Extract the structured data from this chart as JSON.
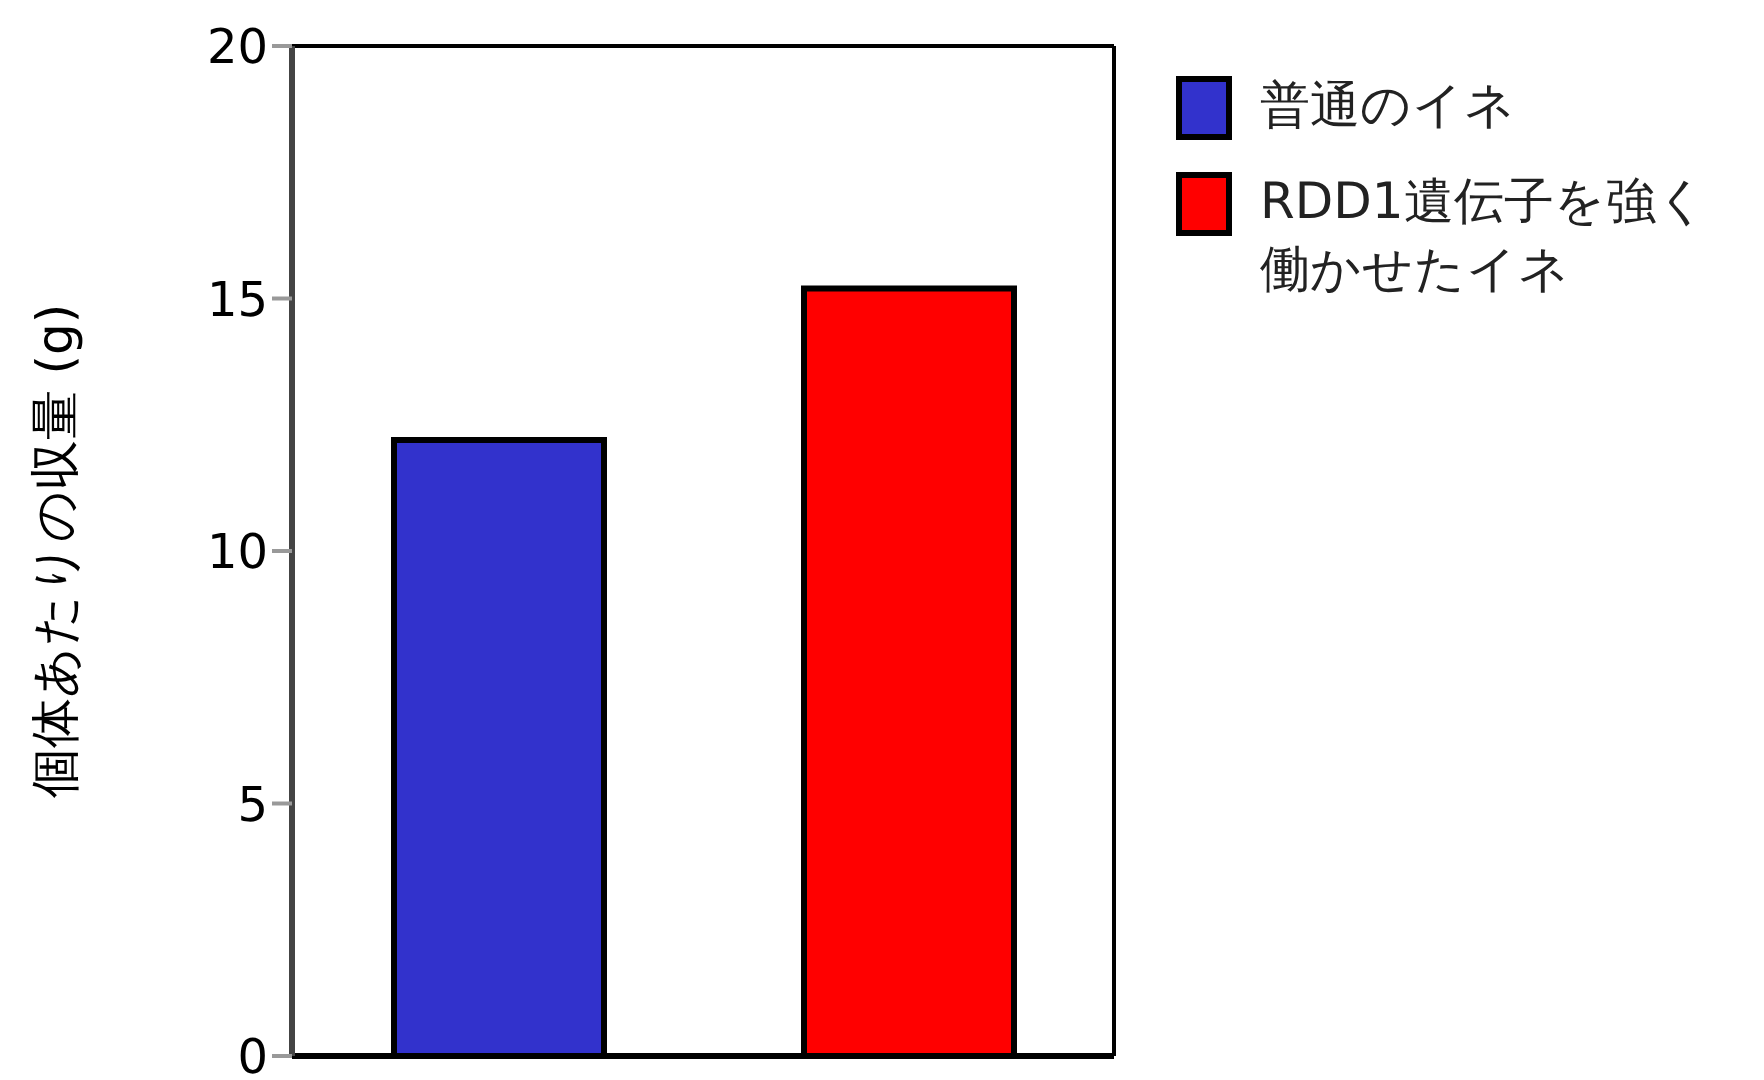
{
  "chart_data": {
    "type": "bar",
    "ylabel": "個体あたりの収量 (g)",
    "categories": [
      null
    ],
    "series": [
      {
        "name": "普通のイネ",
        "color": "#3232cc",
        "values": [
          12.2
        ]
      },
      {
        "name": "RDD1遺伝子を強く働かせたイネ",
        "color": "#ff0000",
        "values": [
          15.2
        ]
      }
    ],
    "ylim": [
      0,
      20
    ],
    "yticks": [
      0,
      5,
      10,
      15,
      20
    ],
    "grid": false,
    "legend": "top right"
  }
}
